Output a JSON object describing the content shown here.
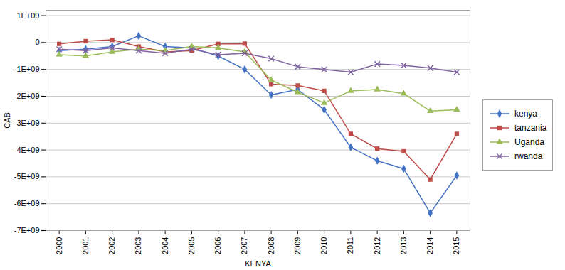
{
  "chart_data": {
    "type": "line",
    "xlabel": "KENYA",
    "ylabel": "CAB",
    "x": [
      2000,
      2001,
      2002,
      2003,
      2004,
      2005,
      2006,
      2007,
      2008,
      2009,
      2010,
      2011,
      2012,
      2013,
      2014,
      2015
    ],
    "series": [
      {
        "name": "kenya",
        "color": "#4472C4",
        "marker": "diamond",
        "values": [
          -300000000.0,
          -250000000.0,
          -150000000.0,
          250000000.0,
          -150000000.0,
          -200000000.0,
          -500000000.0,
          -1000000000.0,
          -1950000000.0,
          -1750000000.0,
          -2500000000.0,
          -3900000000.0,
          -4400000000.0,
          -4700000000.0,
          -6350000000.0,
          -4950000000.0
        ]
      },
      {
        "name": "tanzania",
        "color": "#BE4B48",
        "marker": "square",
        "values": [
          -50000000.0,
          50000000.0,
          100000000.0,
          -150000000.0,
          -350000000.0,
          -300000000.0,
          -50000000.0,
          -40000000.0,
          -1550000000.0,
          -1600000000.0,
          -1800000000.0,
          -3400000000.0,
          -3950000000.0,
          -4050000000.0,
          -5100000000.0,
          -3400000000.0
        ]
      },
      {
        "name": "Uganda",
        "color": "#9BBB59",
        "marker": "triangle",
        "values": [
          -450000000.0,
          -500000000.0,
          -350000000.0,
          -250000000.0,
          -300000000.0,
          -150000000.0,
          -200000000.0,
          -350000000.0,
          -1400000000.0,
          -1850000000.0,
          -2250000000.0,
          -1800000000.0,
          -1750000000.0,
          -1900000000.0,
          -2550000000.0,
          -2500000000.0
        ]
      },
      {
        "name": "rwanda",
        "color": "#8064A2",
        "marker": "x",
        "values": [
          -250000000.0,
          -300000000.0,
          -200000000.0,
          -300000000.0,
          -400000000.0,
          -250000000.0,
          -450000000.0,
          -400000000.0,
          -600000000.0,
          -900000000.0,
          -1000000000.0,
          -1100000000.0,
          -800000000.0,
          -850000000.0,
          -950000000.0,
          -1100000000.0
        ]
      }
    ],
    "xlim": [
      1999.5,
      2015.5
    ],
    "xticks": [
      2000,
      2001,
      2002,
      2003,
      2004,
      2005,
      2006,
      2007,
      2008,
      2009,
      2010,
      2011,
      2012,
      2013,
      2014,
      2015
    ],
    "ylim": [
      -7000000000.0,
      1200000000.0
    ],
    "yticks": [
      {
        "value": -7000000000.0,
        "label": "-7E+09"
      },
      {
        "value": -6000000000.0,
        "label": "-6E+09"
      },
      {
        "value": -5000000000.0,
        "label": "-5E+09"
      },
      {
        "value": -4000000000.0,
        "label": "-4E+09"
      },
      {
        "value": -3000000000.0,
        "label": "-3E+09"
      },
      {
        "value": -2000000000.0,
        "label": "-2E+09"
      },
      {
        "value": -1000000000.0,
        "label": "-1E+09"
      },
      0,
      {
        "value": 1000000000.0,
        "label": "1E+09"
      }
    ],
    "grid": true,
    "legend": "right"
  }
}
